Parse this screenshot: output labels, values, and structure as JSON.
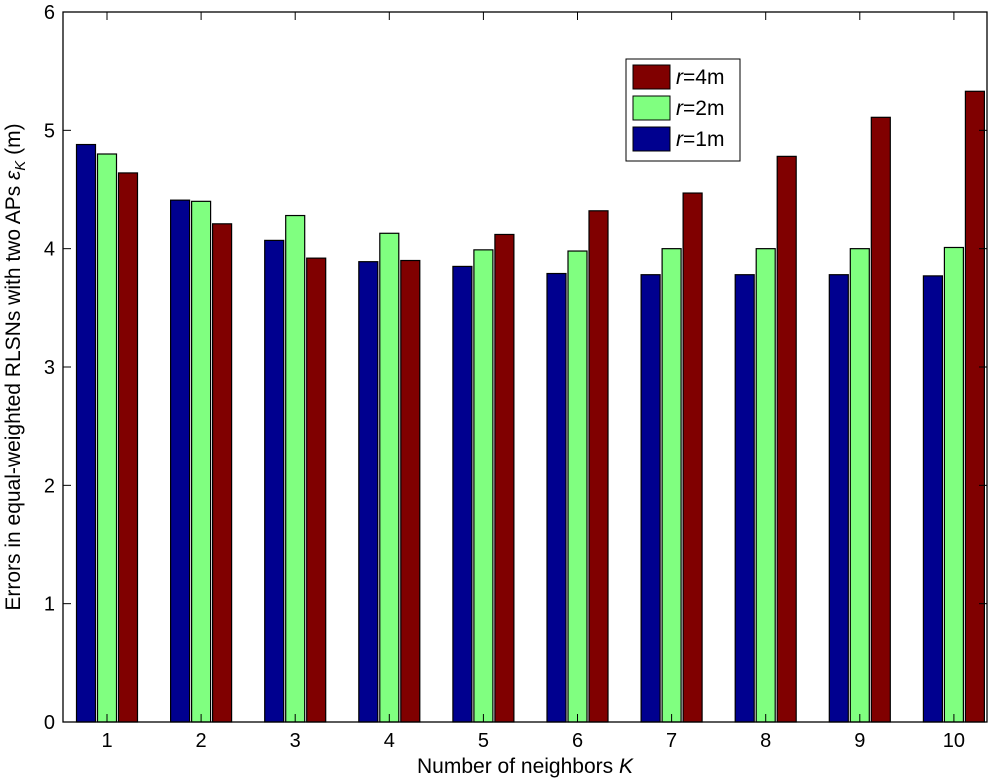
{
  "chart_data": {
    "type": "bar",
    "categories": [
      "1",
      "2",
      "3",
      "4",
      "5",
      "6",
      "7",
      "8",
      "9",
      "10"
    ],
    "series": [
      {
        "name_var": "r",
        "name_rest": "=1m",
        "color": "#00008f",
        "values": [
          4.88,
          4.41,
          4.07,
          3.89,
          3.85,
          3.79,
          3.78,
          3.78,
          3.78,
          3.77
        ]
      },
      {
        "name_var": "r",
        "name_rest": "=2m",
        "color": "#80ff80",
        "values": [
          4.8,
          4.4,
          4.28,
          4.13,
          3.99,
          3.98,
          4.0,
          4.0,
          4.0,
          4.01
        ]
      },
      {
        "name_var": "r",
        "name_rest": "=4m",
        "color": "#800000",
        "values": [
          4.64,
          4.21,
          3.92,
          3.9,
          4.12,
          4.32,
          4.47,
          4.78,
          5.11,
          5.33
        ]
      }
    ],
    "xlabel": "Number of neighbors",
    "xlabel_var": "K",
    "ylabel": "Errors in equal-weighted RLSNs with two APs",
    "ylabel_sym": "ε",
    "ylabel_sub": "K",
    "ylabel_unit": "(m)",
    "ylim": [
      0,
      6
    ],
    "yticks": [
      0,
      1,
      2,
      3,
      4,
      5,
      6
    ],
    "grid": false,
    "legend_position": "top-right",
    "legend_order": [
      2,
      1,
      0
    ]
  }
}
